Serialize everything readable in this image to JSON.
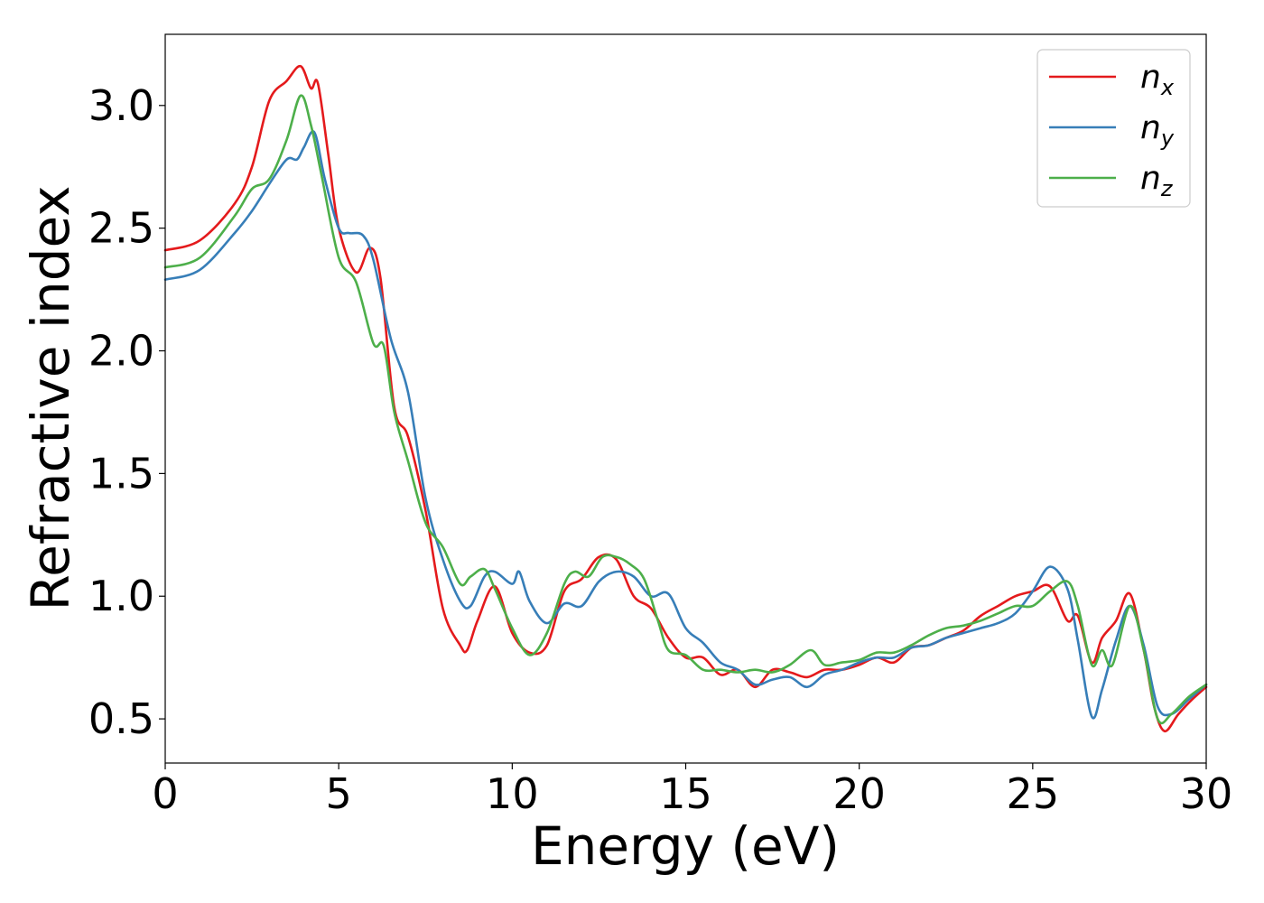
{
  "chart_data": {
    "type": "line",
    "xlabel": "Energy (eV)",
    "ylabel": "Refractive index",
    "xlim": [
      0,
      30
    ],
    "ylim": [
      0.32,
      3.29
    ],
    "xticks": [
      0,
      5,
      10,
      15,
      20,
      25,
      30
    ],
    "xtick_labels": [
      "0",
      "5",
      "10",
      "15",
      "20",
      "25",
      "30"
    ],
    "yticks": [
      0.5,
      1.0,
      1.5,
      2.0,
      2.5,
      3.0
    ],
    "ytick_labels": [
      "0.5",
      "1.0",
      "1.5",
      "2.0",
      "2.5",
      "3.0"
    ],
    "grid": false,
    "legend_placement": "top-right",
    "series": [
      {
        "name": "n_x",
        "label_main": "n",
        "label_sub": "x",
        "color": "#e41a1c",
        "x": [
          0,
          1,
          2,
          2.5,
          3,
          3.5,
          3.9,
          4.2,
          4.4,
          4.7,
          5,
          5.5,
          5.9,
          6.2,
          6.6,
          7,
          7.5,
          8,
          8.5,
          8.7,
          9,
          9.5,
          10,
          10.5,
          11,
          11.5,
          12,
          12.5,
          13,
          13.5,
          14,
          14.5,
          15,
          15.5,
          16,
          16.5,
          17,
          17.5,
          18,
          18.5,
          19,
          19.5,
          20,
          20.5,
          21,
          21.5,
          22,
          22.5,
          23,
          23.5,
          24,
          24.5,
          25,
          25.5,
          26,
          26.3,
          26.7,
          27,
          27.4,
          27.8,
          28.2,
          28.5,
          28.8,
          29.2,
          29.6,
          30
        ],
        "y": [
          2.41,
          2.45,
          2.6,
          2.75,
          3.02,
          3.1,
          3.16,
          3.07,
          3.09,
          2.8,
          2.5,
          2.32,
          2.42,
          2.3,
          1.77,
          1.65,
          1.35,
          0.95,
          0.8,
          0.78,
          0.9,
          1.04,
          0.85,
          0.77,
          0.8,
          1.02,
          1.07,
          1.16,
          1.15,
          1.0,
          0.95,
          0.83,
          0.75,
          0.75,
          0.68,
          0.7,
          0.63,
          0.7,
          0.69,
          0.67,
          0.7,
          0.7,
          0.72,
          0.75,
          0.73,
          0.79,
          0.8,
          0.83,
          0.86,
          0.92,
          0.96,
          1.0,
          1.02,
          1.04,
          0.9,
          0.92,
          0.73,
          0.83,
          0.9,
          1.01,
          0.78,
          0.55,
          0.45,
          0.52,
          0.58,
          0.63
        ]
      },
      {
        "name": "n_y",
        "label_main": "n",
        "label_sub": "y",
        "color": "#377eb8",
        "x": [
          0,
          1,
          2,
          2.5,
          3,
          3.5,
          3.8,
          4.0,
          4.3,
          4.6,
          5,
          5.3,
          5.7,
          6.0,
          6.5,
          7,
          7.5,
          8,
          8.5,
          8.8,
          9.2,
          9.5,
          10,
          10.2,
          10.5,
          11,
          11.5,
          12,
          12.5,
          13,
          13.5,
          14,
          14.5,
          15,
          15.5,
          16,
          16.5,
          17,
          17.5,
          18,
          18.5,
          19,
          19.5,
          20,
          20.5,
          21,
          21.5,
          22,
          22.5,
          23,
          23.5,
          24,
          24.5,
          25,
          25.5,
          26,
          26.3,
          26.7,
          27,
          27.4,
          27.8,
          28.2,
          28.6,
          29,
          29.5,
          30
        ],
        "y": [
          2.29,
          2.33,
          2.48,
          2.57,
          2.68,
          2.78,
          2.78,
          2.83,
          2.89,
          2.7,
          2.5,
          2.48,
          2.47,
          2.37,
          2.05,
          1.83,
          1.4,
          1.15,
          0.98,
          0.96,
          1.08,
          1.1,
          1.05,
          1.1,
          0.98,
          0.89,
          0.97,
          0.96,
          1.06,
          1.1,
          1.08,
          1.0,
          1.01,
          0.87,
          0.81,
          0.73,
          0.7,
          0.64,
          0.66,
          0.67,
          0.63,
          0.68,
          0.7,
          0.73,
          0.75,
          0.75,
          0.79,
          0.8,
          0.83,
          0.85,
          0.87,
          0.89,
          0.93,
          1.02,
          1.12,
          1.03,
          0.82,
          0.51,
          0.62,
          0.82,
          0.96,
          0.8,
          0.55,
          0.52,
          0.58,
          0.64
        ]
      },
      {
        "name": "n_z",
        "label_main": "n",
        "label_sub": "z",
        "color": "#4daf4a",
        "x": [
          0,
          1,
          2,
          2.5,
          3,
          3.5,
          3.9,
          4.2,
          4.5,
          5,
          5.5,
          6,
          6.3,
          6.6,
          7,
          7.5,
          8,
          8.5,
          8.8,
          9.2,
          9.5,
          10,
          10.5,
          11,
          11.5,
          11.8,
          12.2,
          12.6,
          13,
          13.4,
          13.8,
          14.2,
          14.5,
          15,
          15.5,
          16,
          16.5,
          17,
          17.5,
          18,
          18.6,
          19,
          19.5,
          20,
          20.5,
          21,
          21.5,
          22,
          22.5,
          23,
          23.5,
          24,
          24.5,
          25,
          25.5,
          26,
          26.3,
          26.7,
          27,
          27.3,
          27.8,
          28.2,
          28.6,
          29,
          29.5,
          30
        ],
        "y": [
          2.34,
          2.38,
          2.55,
          2.66,
          2.7,
          2.86,
          3.04,
          2.92,
          2.72,
          2.38,
          2.28,
          2.03,
          2.02,
          1.75,
          1.55,
          1.3,
          1.2,
          1.05,
          1.08,
          1.11,
          1.03,
          0.87,
          0.76,
          0.85,
          1.05,
          1.1,
          1.08,
          1.16,
          1.16,
          1.13,
          1.07,
          0.9,
          0.78,
          0.76,
          0.7,
          0.7,
          0.69,
          0.7,
          0.69,
          0.72,
          0.78,
          0.72,
          0.73,
          0.74,
          0.77,
          0.77,
          0.8,
          0.84,
          0.87,
          0.88,
          0.9,
          0.93,
          0.96,
          0.96,
          1.02,
          1.06,
          0.96,
          0.72,
          0.78,
          0.72,
          0.96,
          0.78,
          0.5,
          0.52,
          0.59,
          0.64
        ]
      }
    ]
  }
}
